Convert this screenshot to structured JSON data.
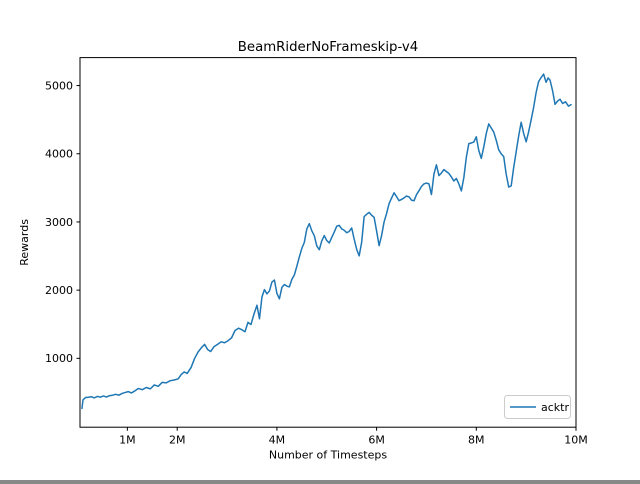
{
  "figure": {
    "background": "#ffffff"
  },
  "colors": {
    "line": "#1f77b4",
    "frame": "#000000",
    "text": "#000000",
    "legend_border": "#cccccc"
  },
  "chart_data": {
    "type": "line",
    "title": "BeamRiderNoFrameskip-v4",
    "xlabel": "Number of Timesteps",
    "ylabel": "Rewards",
    "xlim": [
      0.05,
      10.0
    ],
    "ylim": [
      -10,
      5410
    ],
    "x_unit": "millions of timesteps",
    "grid": false,
    "x_ticks": [
      {
        "value": 1,
        "label": "1M"
      },
      {
        "value": 2,
        "label": "2M"
      },
      {
        "value": 4,
        "label": "4M"
      },
      {
        "value": 6,
        "label": "6M"
      },
      {
        "value": 8,
        "label": "8M"
      },
      {
        "value": 10,
        "label": "10M"
      }
    ],
    "y_ticks": [
      {
        "value": 1000,
        "label": "1000"
      },
      {
        "value": 2000,
        "label": "2000"
      },
      {
        "value": 3000,
        "label": "3000"
      },
      {
        "value": 4000,
        "label": "4000"
      },
      {
        "value": 5000,
        "label": "5000"
      }
    ],
    "legend": {
      "position": "lower right",
      "entries": [
        {
          "label": "acktr",
          "color": "#1f77b4"
        }
      ]
    },
    "series": [
      {
        "name": "acktr",
        "color": "#1f77b4",
        "points": [
          [
            0.09,
            265
          ],
          [
            0.11,
            390
          ],
          [
            0.16,
            425
          ],
          [
            0.22,
            430
          ],
          [
            0.28,
            437
          ],
          [
            0.33,
            420
          ],
          [
            0.4,
            442
          ],
          [
            0.46,
            430
          ],
          [
            0.52,
            448
          ],
          [
            0.58,
            432
          ],
          [
            0.64,
            452
          ],
          [
            0.7,
            458
          ],
          [
            0.76,
            472
          ],
          [
            0.83,
            460
          ],
          [
            0.9,
            487
          ],
          [
            0.96,
            500
          ],
          [
            1.02,
            512
          ],
          [
            1.08,
            492
          ],
          [
            1.15,
            522
          ],
          [
            1.22,
            558
          ],
          [
            1.3,
            540
          ],
          [
            1.38,
            572
          ],
          [
            1.46,
            552
          ],
          [
            1.54,
            610
          ],
          [
            1.62,
            590
          ],
          [
            1.7,
            648
          ],
          [
            1.78,
            640
          ],
          [
            1.86,
            672
          ],
          [
            1.94,
            682
          ],
          [
            2.02,
            700
          ],
          [
            2.08,
            762
          ],
          [
            2.14,
            800
          ],
          [
            2.2,
            778
          ],
          [
            2.28,
            868
          ],
          [
            2.35,
            1000
          ],
          [
            2.42,
            1095
          ],
          [
            2.49,
            1160
          ],
          [
            2.55,
            1205
          ],
          [
            2.61,
            1130
          ],
          [
            2.67,
            1100
          ],
          [
            2.74,
            1172
          ],
          [
            2.81,
            1205
          ],
          [
            2.88,
            1242
          ],
          [
            2.95,
            1228
          ],
          [
            3.02,
            1258
          ],
          [
            3.09,
            1300
          ],
          [
            3.16,
            1408
          ],
          [
            3.23,
            1442
          ],
          [
            3.3,
            1418
          ],
          [
            3.36,
            1390
          ],
          [
            3.42,
            1528
          ],
          [
            3.48,
            1495
          ],
          [
            3.54,
            1648
          ],
          [
            3.6,
            1778
          ],
          [
            3.65,
            1580
          ],
          [
            3.7,
            1900
          ],
          [
            3.75,
            2008
          ],
          [
            3.8,
            1945
          ],
          [
            3.85,
            1988
          ],
          [
            3.9,
            2118
          ],
          [
            3.95,
            2148
          ],
          [
            4.0,
            1952
          ],
          [
            4.05,
            1872
          ],
          [
            4.1,
            2040
          ],
          [
            4.15,
            2082
          ],
          [
            4.2,
            2058
          ],
          [
            4.25,
            2048
          ],
          [
            4.3,
            2158
          ],
          [
            4.35,
            2222
          ],
          [
            4.4,
            2350
          ],
          [
            4.45,
            2488
          ],
          [
            4.5,
            2612
          ],
          [
            4.55,
            2700
          ],
          [
            4.6,
            2898
          ],
          [
            4.65,
            2975
          ],
          [
            4.7,
            2870
          ],
          [
            4.75,
            2798
          ],
          [
            4.8,
            2648
          ],
          [
            4.85,
            2592
          ],
          [
            4.9,
            2722
          ],
          [
            4.95,
            2800
          ],
          [
            5.0,
            2728
          ],
          [
            5.05,
            2692
          ],
          [
            5.1,
            2772
          ],
          [
            5.15,
            2852
          ],
          [
            5.2,
            2938
          ],
          [
            5.25,
            2950
          ],
          [
            5.3,
            2898
          ],
          [
            5.35,
            2878
          ],
          [
            5.4,
            2842
          ],
          [
            5.45,
            2860
          ],
          [
            5.5,
            2912
          ],
          [
            5.55,
            2748
          ],
          [
            5.6,
            2600
          ],
          [
            5.65,
            2502
          ],
          [
            5.7,
            2700
          ],
          [
            5.75,
            3078
          ],
          [
            5.8,
            3112
          ],
          [
            5.85,
            3140
          ],
          [
            5.9,
            3098
          ],
          [
            5.95,
            3068
          ],
          [
            6.0,
            2868
          ],
          [
            6.05,
            2652
          ],
          [
            6.1,
            2800
          ],
          [
            6.15,
            3000
          ],
          [
            6.2,
            3122
          ],
          [
            6.25,
            3268
          ],
          [
            6.3,
            3350
          ],
          [
            6.35,
            3428
          ],
          [
            6.4,
            3372
          ],
          [
            6.45,
            3312
          ],
          [
            6.5,
            3330
          ],
          [
            6.55,
            3352
          ],
          [
            6.6,
            3380
          ],
          [
            6.65,
            3368
          ],
          [
            6.7,
            3320
          ],
          [
            6.75,
            3310
          ],
          [
            6.8,
            3400
          ],
          [
            6.85,
            3458
          ],
          [
            6.9,
            3520
          ],
          [
            6.95,
            3558
          ],
          [
            7.0,
            3570
          ],
          [
            7.05,
            3558
          ],
          [
            7.1,
            3402
          ],
          [
            7.15,
            3700
          ],
          [
            7.2,
            3838
          ],
          [
            7.25,
            3680
          ],
          [
            7.3,
            3718
          ],
          [
            7.35,
            3768
          ],
          [
            7.4,
            3738
          ],
          [
            7.45,
            3712
          ],
          [
            7.5,
            3660
          ],
          [
            7.55,
            3600
          ],
          [
            7.6,
            3638
          ],
          [
            7.65,
            3558
          ],
          [
            7.7,
            3455
          ],
          [
            7.75,
            3650
          ],
          [
            7.8,
            3948
          ],
          [
            7.85,
            4148
          ],
          [
            7.9,
            4158
          ],
          [
            7.95,
            4172
          ],
          [
            8.0,
            4248
          ],
          [
            8.05,
            4048
          ],
          [
            8.1,
            3932
          ],
          [
            8.15,
            4100
          ],
          [
            8.2,
            4298
          ],
          [
            8.25,
            4438
          ],
          [
            8.3,
            4378
          ],
          [
            8.35,
            4318
          ],
          [
            8.4,
            4198
          ],
          [
            8.45,
            4058
          ],
          [
            8.5,
            3998
          ],
          [
            8.55,
            3958
          ],
          [
            8.6,
            3700
          ],
          [
            8.65,
            3512
          ],
          [
            8.7,
            3530
          ],
          [
            8.75,
            3798
          ],
          [
            8.8,
            4030
          ],
          [
            8.85,
            4260
          ],
          [
            8.9,
            4462
          ],
          [
            8.95,
            4298
          ],
          [
            9.0,
            4175
          ],
          [
            9.05,
            4322
          ],
          [
            9.1,
            4498
          ],
          [
            9.15,
            4680
          ],
          [
            9.2,
            4898
          ],
          [
            9.25,
            5058
          ],
          [
            9.3,
            5118
          ],
          [
            9.35,
            5168
          ],
          [
            9.4,
            5048
          ],
          [
            9.44,
            5112
          ],
          [
            9.48,
            5078
          ],
          [
            9.53,
            4925
          ],
          [
            9.58,
            4725
          ],
          [
            9.63,
            4772
          ],
          [
            9.68,
            4800
          ],
          [
            9.73,
            4738
          ],
          [
            9.79,
            4762
          ],
          [
            9.85,
            4698
          ],
          [
            9.9,
            4720
          ]
        ]
      }
    ]
  }
}
